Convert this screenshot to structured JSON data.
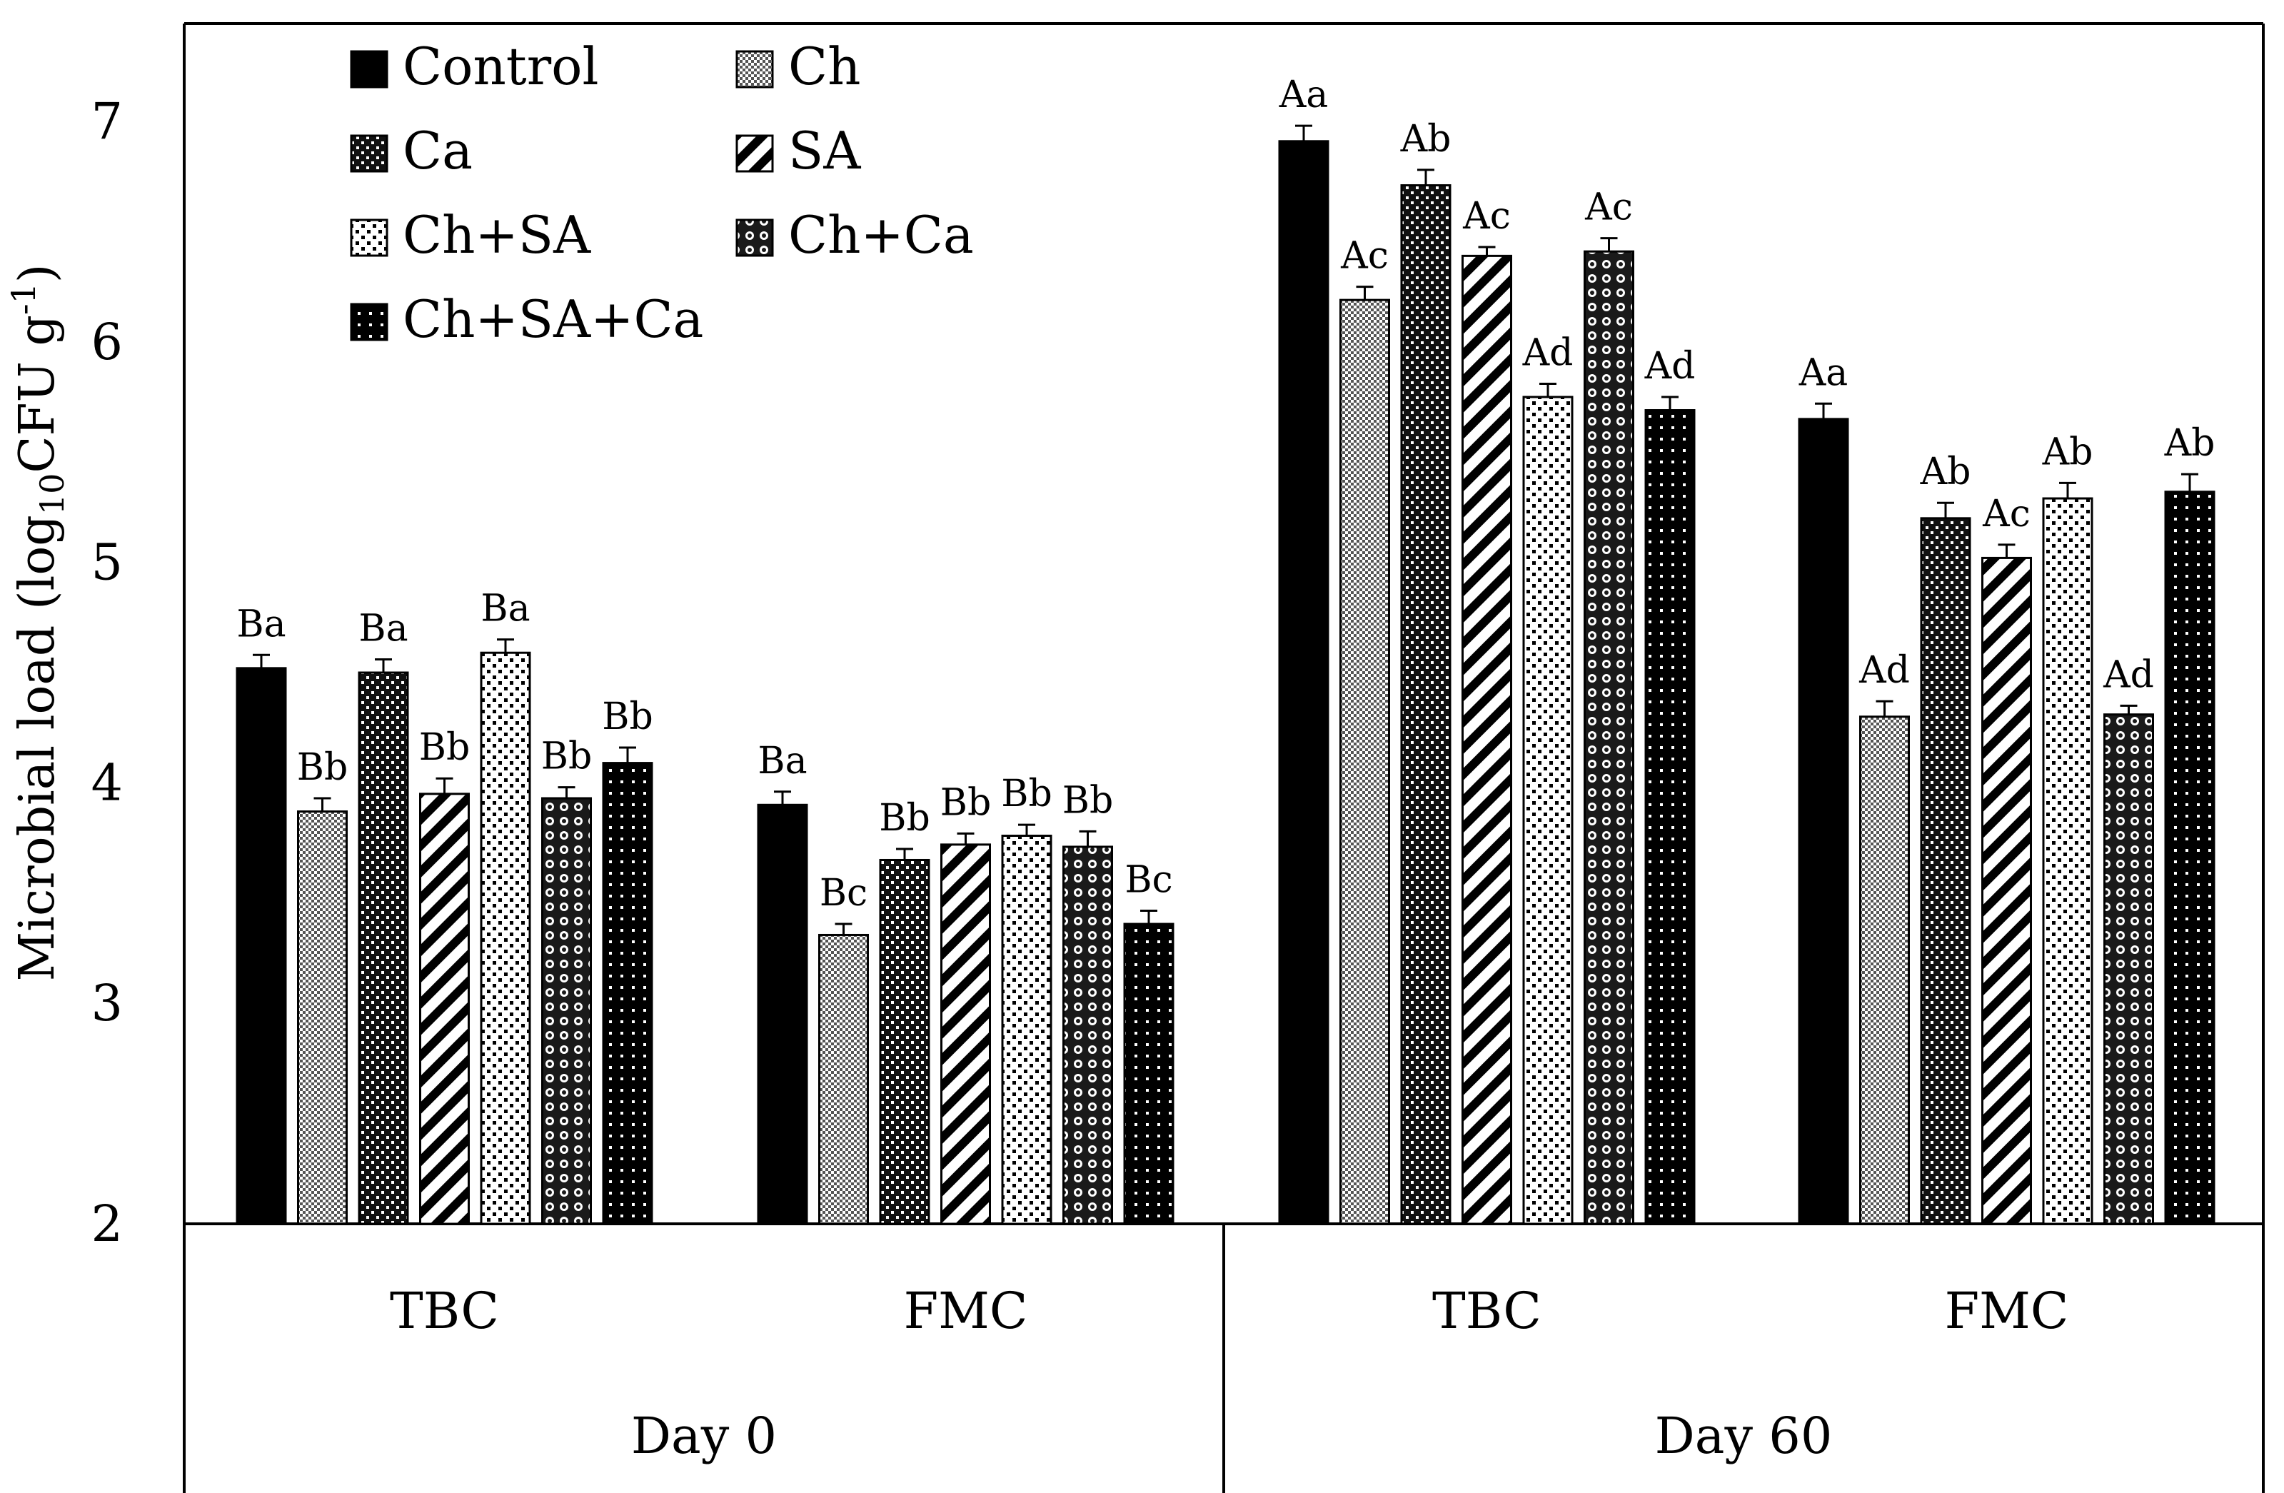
{
  "chart_data": {
    "type": "bar",
    "ylabel": "Microbial load (log",
    "ylabel_sub": "10",
    "ylabel_unit": "CFU g",
    "ylabel_sup": "-1",
    "ylabel_close": ")",
    "ylim": [
      2,
      7.4
    ],
    "yticks": [
      "2",
      "3",
      "4",
      "5",
      "6",
      "7"
    ],
    "ytick_values": [
      2,
      3,
      4,
      5,
      6,
      7
    ],
    "legend": [
      "Control",
      "Ch",
      "Ca",
      "SA",
      "Ch+SA",
      "Ch+Ca",
      "Ch+SA+Ca"
    ],
    "legend_placement": "top-left",
    "days": [
      "Day 0",
      "Day 60"
    ],
    "groups": [
      {
        "day": "Day 0",
        "label": "TBC",
        "values": [
          4.52,
          3.87,
          4.5,
          3.95,
          4.59,
          3.93,
          4.09
        ],
        "errors": [
          0.06,
          0.06,
          0.06,
          0.07,
          0.06,
          0.05,
          0.07
        ],
        "letters": [
          "Ba",
          "Bb",
          "Ba",
          "Bb",
          "Ba",
          "Bb",
          "Bb"
        ]
      },
      {
        "day": "Day 0",
        "label": "FMC",
        "values": [
          3.9,
          3.31,
          3.65,
          3.72,
          3.76,
          3.71,
          3.36
        ],
        "errors": [
          0.06,
          0.05,
          0.05,
          0.05,
          0.05,
          0.07,
          0.06
        ],
        "letters": [
          "Ba",
          "Bc",
          "Bb",
          "Bb",
          "Bb",
          "Bb",
          "Bc"
        ]
      },
      {
        "day": "Day 60",
        "label": "TBC",
        "values": [
          6.91,
          6.19,
          6.71,
          6.39,
          5.75,
          6.41,
          5.69
        ],
        "errors": [
          0.07,
          0.06,
          0.07,
          0.04,
          0.06,
          0.06,
          0.06
        ],
        "letters": [
          "Aa",
          "Ac",
          "Ab",
          "Ac",
          "Ad",
          "Ac",
          "Ad"
        ]
      },
      {
        "day": "Day 60",
        "label": "FMC",
        "values": [
          5.65,
          4.3,
          5.2,
          5.02,
          5.29,
          4.31,
          5.32
        ],
        "errors": [
          0.07,
          0.07,
          0.07,
          0.06,
          0.07,
          0.04,
          0.08
        ],
        "letters": [
          "Aa",
          "Ad",
          "Ab",
          "Ac",
          "Ab",
          "Ad",
          "Ab"
        ]
      }
    ]
  }
}
